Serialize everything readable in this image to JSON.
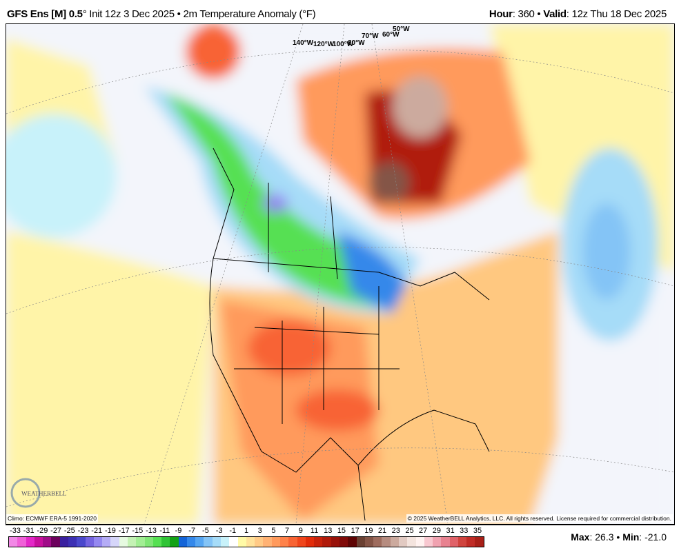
{
  "header": {
    "model": "GFS Ens [M] 0.5",
    "deg": "°",
    "init": " Init 12z 3 Dec 2025 • 2m Temperature Anomaly (°F)",
    "hour_label": "Hour",
    "hour": ": 360 • ",
    "valid_label": "Valid",
    "valid": ": 12z Thu 18 Dec 2025"
  },
  "map": {
    "longitude_labels": [
      "140°W",
      "120°W",
      "100°W",
      "80°W",
      "70°W",
      "60°W",
      "50°W"
    ],
    "logo_text": "WEATHERBELL",
    "climo": "Climo: ECMWF ERA-5 1991-2020",
    "copyright": "© 2025 WeatherBELL Analytics, LLC. All rights reserved. License required for commercial distribution."
  },
  "colorbar": {
    "labels": [
      "-33",
      "-31",
      "-29",
      "-27",
      "-25",
      "-23",
      "-21",
      "-19",
      "-17",
      "-15",
      "-13",
      "-11",
      "-9",
      "-7",
      "-5",
      "-3",
      "-1",
      "1",
      "3",
      "5",
      "7",
      "9",
      "11",
      "13",
      "15",
      "17",
      "19",
      "21",
      "23",
      "25",
      "27",
      "29",
      "31",
      "33",
      "35"
    ],
    "colors": [
      "#f288e6",
      "#f060d8",
      "#e428c8",
      "#c8109e",
      "#a00c88",
      "#6c005c",
      "#3a20a0",
      "#3c30b4",
      "#4a48cc",
      "#7464e0",
      "#9488f0",
      "#b4acf6",
      "#d6d6fa",
      "#e6fae0",
      "#c4f2b4",
      "#a2ee94",
      "#80e676",
      "#56e052",
      "#30c436",
      "#14a216",
      "#1464d8",
      "#3488ea",
      "#56a6f2",
      "#84c4f6",
      "#a6dcf8",
      "#c8f2fa",
      "#ffffff",
      "#fffaa6",
      "#ffe29a",
      "#ffca86",
      "#ffb274",
      "#ff9a5c",
      "#ff824a",
      "#f86434",
      "#f0461c",
      "#e22c0a",
      "#c8220a",
      "#b01a0a",
      "#98120a",
      "#800a08",
      "#5e0404",
      "#6a4032",
      "#845446",
      "#9e6c5e",
      "#b68c80",
      "#ccaa9e",
      "#e2cac2",
      "#f4e4de",
      "#fff2f0",
      "#f8c8d0",
      "#f0a2b0",
      "#e88290",
      "#e06268",
      "#d0443e",
      "#c02c26",
      "#a82018"
    ]
  },
  "stats": {
    "max_label": "Max",
    "max": ": 26.3 • ",
    "min_label": "Min",
    "min": ": -21.0"
  }
}
